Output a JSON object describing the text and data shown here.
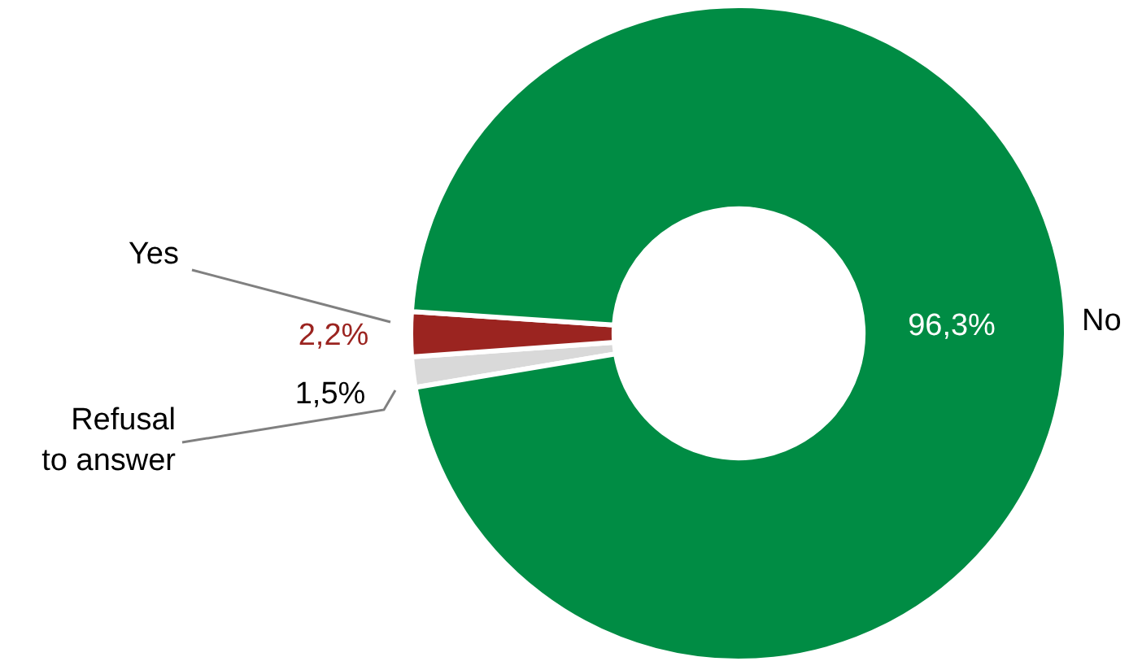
{
  "chart_data": {
    "type": "donut",
    "categories": [
      "Refusal to answer",
      "Yes",
      "No"
    ],
    "values": [
      1.5,
      2.2,
      96.3
    ],
    "colors": [
      "#d9d9d9",
      "#9b2420",
      "#008c44"
    ],
    "value_labels": [
      "1,5%",
      "2,2%",
      "96,3%"
    ],
    "legend": false
  }
}
